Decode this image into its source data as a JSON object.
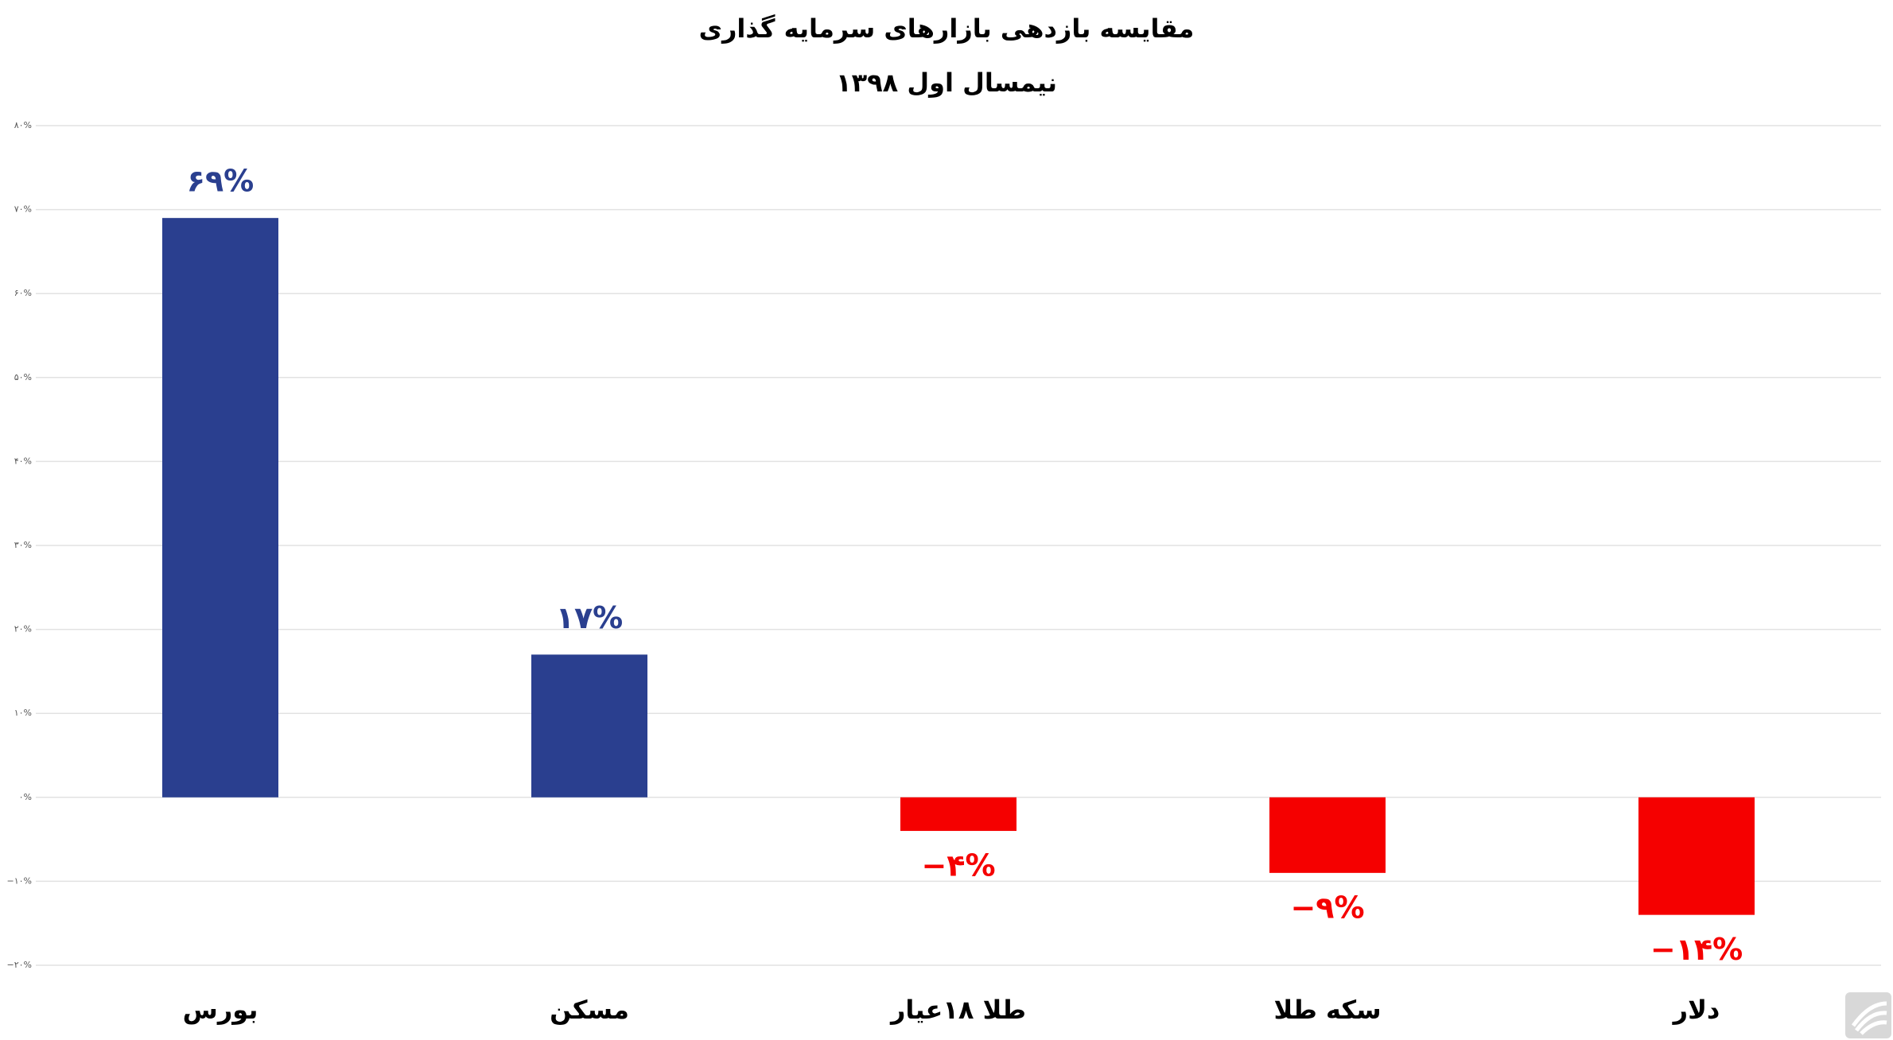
{
  "chart_data": {
    "type": "bar",
    "title": "مقایسه بازدهی بازارهای سرمایه گذاری",
    "subtitle": "نیمسال اول ۱۳۹۸",
    "categories": [
      "بورس",
      "مسکن",
      "طلا ۱۸عیار",
      "سکه طلا",
      "دلار"
    ],
    "values": [
      69,
      17,
      -4,
      -9,
      -14
    ],
    "value_labels": [
      "۶۹%",
      "۱۷%",
      "−۴%",
      "−۹%",
      "−۱۴%"
    ],
    "colors": [
      "#2a3f8f",
      "#2a3f8f",
      "#f50000",
      "#f50000",
      "#f50000"
    ],
    "ylim": [
      -20,
      80
    ],
    "yticks": [
      {
        "value": -20,
        "label": "−۲۰%"
      },
      {
        "value": -10,
        "label": "−۱۰%"
      },
      {
        "value": 0,
        "label": "۰%"
      },
      {
        "value": 10,
        "label": "۱۰%"
      },
      {
        "value": 20,
        "label": "۲۰%"
      },
      {
        "value": 30,
        "label": "۳۰%"
      },
      {
        "value": 40,
        "label": "۴۰%"
      },
      {
        "value": 50,
        "label": "۵۰%"
      },
      {
        "value": 60,
        "label": "۶۰%"
      },
      {
        "value": 70,
        "label": "۷۰%"
      },
      {
        "value": 80,
        "label": "۸۰%"
      }
    ],
    "grid": true
  }
}
